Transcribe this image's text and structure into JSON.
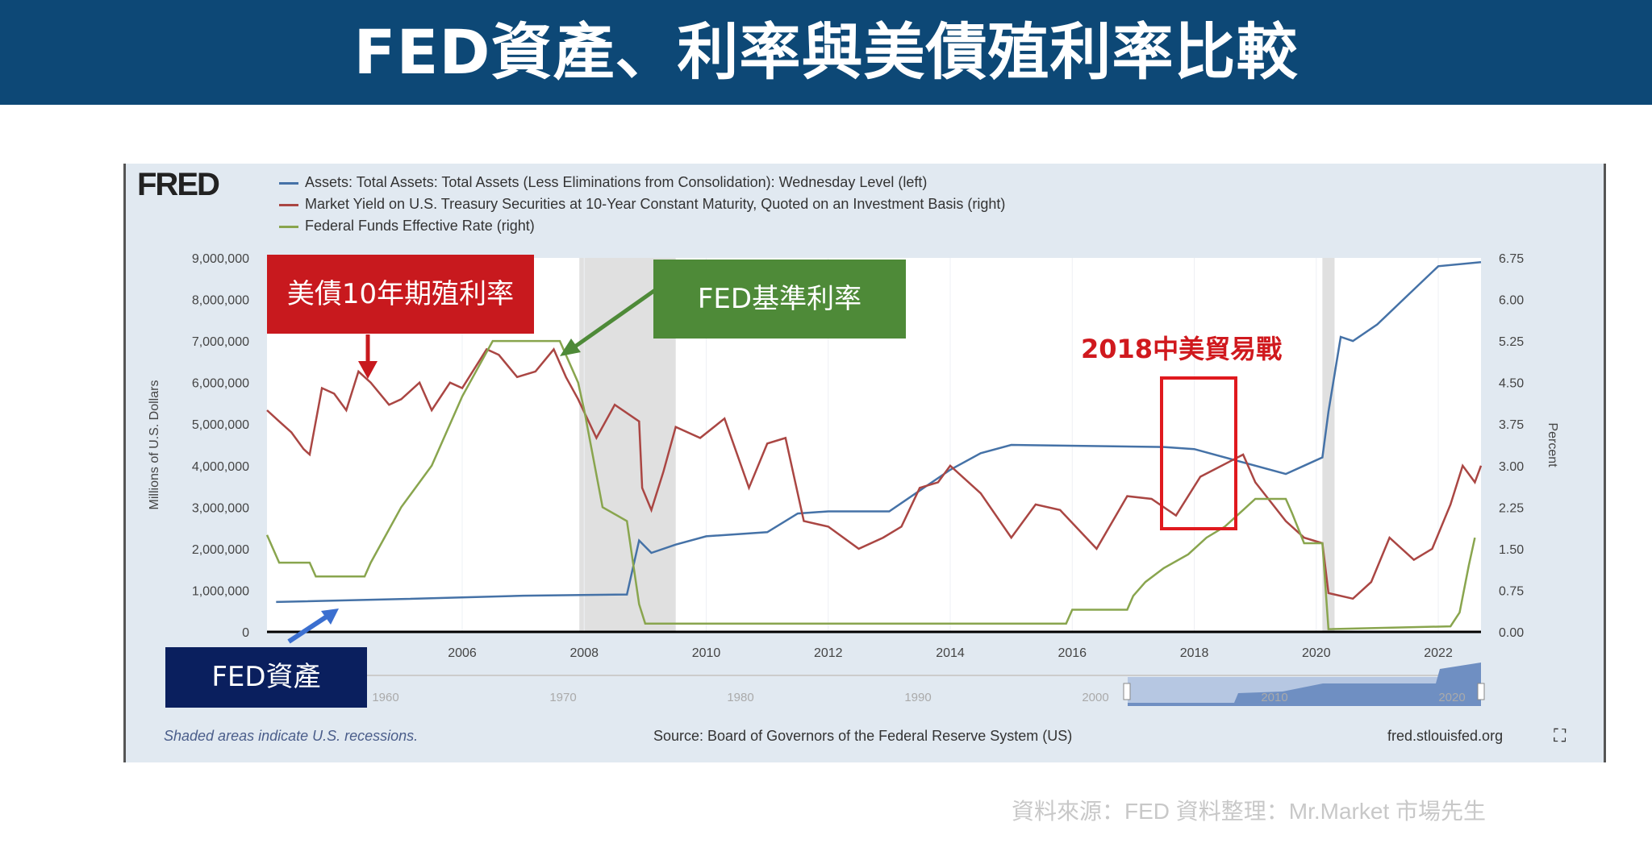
{
  "title": "FED資產、利率與美債殖利率比較",
  "fred_logo": "FRED",
  "legend": [
    {
      "label": "Assets: Total Assets: Total Assets (Less Eliminations from Consolidation): Wednesday Level (left)",
      "color": "#4572a7"
    },
    {
      "label": "Market Yield on U.S. Treasury Securities at 10-Year Constant Maturity, Quoted on an Investment Basis (right)",
      "color": "#aa4643"
    },
    {
      "label": "Federal Funds Effective Rate (right)",
      "color": "#89a54e"
    }
  ],
  "annotations": {
    "treasury": "美債10年期殖利率",
    "fed_rate": "FED基準利率",
    "trade_war": "2018中美貿易戰",
    "fed_assets": "FED資產"
  },
  "footer": {
    "recession_note": "Shaded areas indicate U.S. recessions.",
    "source": "Source: Board of Governors of the Federal Reserve System (US)",
    "site": "fred.stlouisfed.org",
    "credit": "資料來源：FED  資料整理：Mr.Market 市場先生"
  },
  "navigator": {
    "ticks": [
      "1960",
      "1970",
      "1980",
      "1990",
      "2000",
      "2010",
      "2020"
    ]
  },
  "chart_data": {
    "type": "line",
    "ylabel": "Millions of U.S. Dollars",
    "y2label": "Percent",
    "xlim": [
      2002.8,
      2022.7
    ],
    "ylim": [
      0,
      9000000
    ],
    "y2lim": [
      0,
      6.75
    ],
    "xticks": [
      "2006",
      "2008",
      "2010",
      "2012",
      "2014",
      "2016",
      "2018",
      "2020",
      "2022"
    ],
    "yticks": [
      "0",
      "1,000,000",
      "2,000,000",
      "3,000,000",
      "4,000,000",
      "5,000,000",
      "6,000,000",
      "7,000,000",
      "8,000,000",
      "9,000,000"
    ],
    "y2ticks": [
      "0.00",
      "0.75",
      "1.50",
      "2.25",
      "3.00",
      "3.75",
      "4.50",
      "5.25",
      "6.00",
      "6.75"
    ],
    "recessions": [
      [
        2007.92,
        2009.5
      ],
      [
        2020.1,
        2020.3
      ]
    ],
    "grid": true,
    "legend": "top-left",
    "series": [
      {
        "name": "Assets: Total Assets: Total Assets (Less Eliminations from Consolidation): Wednesday Level (left)",
        "axis": "left",
        "color": "#4572a7",
        "x": [
          2002.95,
          2005,
          2007,
          2008.7,
          2008.9,
          2009.1,
          2009.5,
          2010,
          2011,
          2011.5,
          2012,
          2013,
          2013.5,
          2014,
          2014.5,
          2015,
          2017.5,
          2018,
          2019.5,
          2019.8,
          2020.1,
          2020.2,
          2020.4,
          2020.6,
          2021,
          2021.5,
          2022,
          2022.7
        ],
        "y": [
          720000,
          790000,
          870000,
          900000,
          2200000,
          1900000,
          2100000,
          2300000,
          2400000,
          2850000,
          2900000,
          2900000,
          3400000,
          3900000,
          4300000,
          4500000,
          4450000,
          4400000,
          3800000,
          4000000,
          4200000,
          5300000,
          7100000,
          7000000,
          7400000,
          8100000,
          8800000,
          8900000
        ]
      },
      {
        "name": "Market Yield on U.S. Treasury Securities at 10-Year Constant Maturity, Quoted on an Investment Basis (right)",
        "axis": "right",
        "color": "#aa4643",
        "x": [
          2002.8,
          2003.0,
          2003.2,
          2003.4,
          2003.5,
          2003.7,
          2003.9,
          2004.1,
          2004.3,
          2004.5,
          2004.8,
          2005.0,
          2005.3,
          2005.5,
          2005.8,
          2006.0,
          2006.4,
          2006.6,
          2006.9,
          2007.2,
          2007.5,
          2007.7,
          2007.9,
          2008.2,
          2008.5,
          2008.9,
          2008.95,
          2009.1,
          2009.3,
          2009.5,
          2009.9,
          2010.3,
          2010.7,
          2011.0,
          2011.3,
          2011.6,
          2012.0,
          2012.5,
          2012.9,
          2013.2,
          2013.5,
          2013.8,
          2014.0,
          2014.5,
          2015.0,
          2015.4,
          2015.8,
          2016.4,
          2016.9,
          2017.3,
          2017.7,
          2018.1,
          2018.8,
          2019.0,
          2019.5,
          2019.8,
          2020.1,
          2020.2,
          2020.6,
          2020.9,
          2021.2,
          2021.6,
          2021.9,
          2022.2,
          2022.4,
          2022.6,
          2022.7
        ],
        "y": [
          4.0,
          3.8,
          3.6,
          3.3,
          3.2,
          4.4,
          4.3,
          4.0,
          4.7,
          4.5,
          4.1,
          4.2,
          4.5,
          4.0,
          4.5,
          4.4,
          5.1,
          5.0,
          4.6,
          4.7,
          5.1,
          4.6,
          4.2,
          3.5,
          4.1,
          3.8,
          2.6,
          2.2,
          2.9,
          3.7,
          3.5,
          3.85,
          2.6,
          3.4,
          3.5,
          2.0,
          1.9,
          1.5,
          1.7,
          1.9,
          2.6,
          2.7,
          3.0,
          2.5,
          1.7,
          2.3,
          2.2,
          1.5,
          2.45,
          2.4,
          2.1,
          2.8,
          3.2,
          2.7,
          2.0,
          1.7,
          1.6,
          0.7,
          0.6,
          0.9,
          1.7,
          1.3,
          1.5,
          2.3,
          3.0,
          2.7,
          3.0
        ]
      },
      {
        "name": "Federal Funds Effective Rate (right)",
        "axis": "right",
        "color": "#89a54e",
        "x": [
          2002.8,
          2003.0,
          2003.5,
          2003.6,
          2004.4,
          2004.5,
          2005.0,
          2005.5,
          2006.0,
          2006.5,
          2007.6,
          2007.9,
          2008.0,
          2008.3,
          2008.7,
          2008.9,
          2009.0,
          2015.9,
          2016.0,
          2016.9,
          2017.0,
          2017.2,
          2017.5,
          2017.9,
          2018.2,
          2018.5,
          2018.8,
          2019.0,
          2019.5,
          2019.6,
          2019.8,
          2020.1,
          2020.2,
          2022.2,
          2022.35,
          2022.5,
          2022.6
        ],
        "y": [
          1.75,
          1.25,
          1.25,
          1.0,
          1.0,
          1.25,
          2.25,
          3.0,
          4.25,
          5.25,
          5.25,
          4.5,
          4.0,
          2.25,
          2.0,
          0.5,
          0.15,
          0.15,
          0.4,
          0.4,
          0.65,
          0.9,
          1.15,
          1.4,
          1.7,
          1.9,
          2.2,
          2.4,
          2.4,
          2.15,
          1.6,
          1.6,
          0.05,
          0.1,
          0.35,
          1.2,
          1.7
        ]
      }
    ]
  }
}
